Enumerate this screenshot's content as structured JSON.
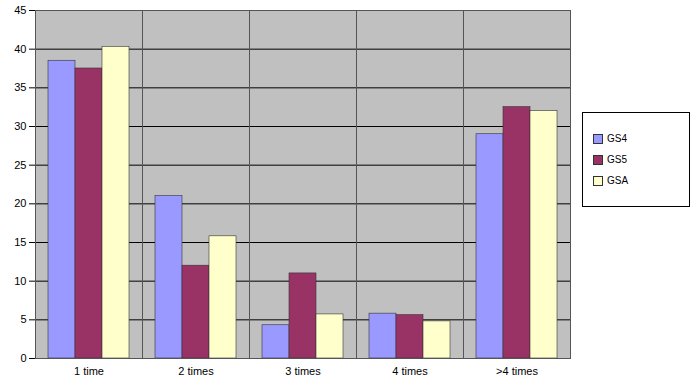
{
  "chart_data": {
    "type": "bar",
    "categories": [
      "1 time",
      "2 times",
      "3 times",
      "4 times",
      ">4 times"
    ],
    "series": [
      {
        "name": "GS4",
        "color": "#9999ff",
        "values": [
          38.5,
          21,
          4.3,
          5.8,
          29
        ]
      },
      {
        "name": "GS5",
        "color": "#993366",
        "values": [
          37.5,
          12,
          11,
          5.6,
          32.5
        ]
      },
      {
        "name": "GSA",
        "color": "#ffffcc",
        "values": [
          40.3,
          15.8,
          5.7,
          4.8,
          32
        ]
      }
    ],
    "ylim": [
      0,
      45
    ],
    "yticks": [
      0,
      5,
      10,
      15,
      20,
      25,
      30,
      35,
      40,
      45
    ],
    "grid": true,
    "legend": "right"
  }
}
